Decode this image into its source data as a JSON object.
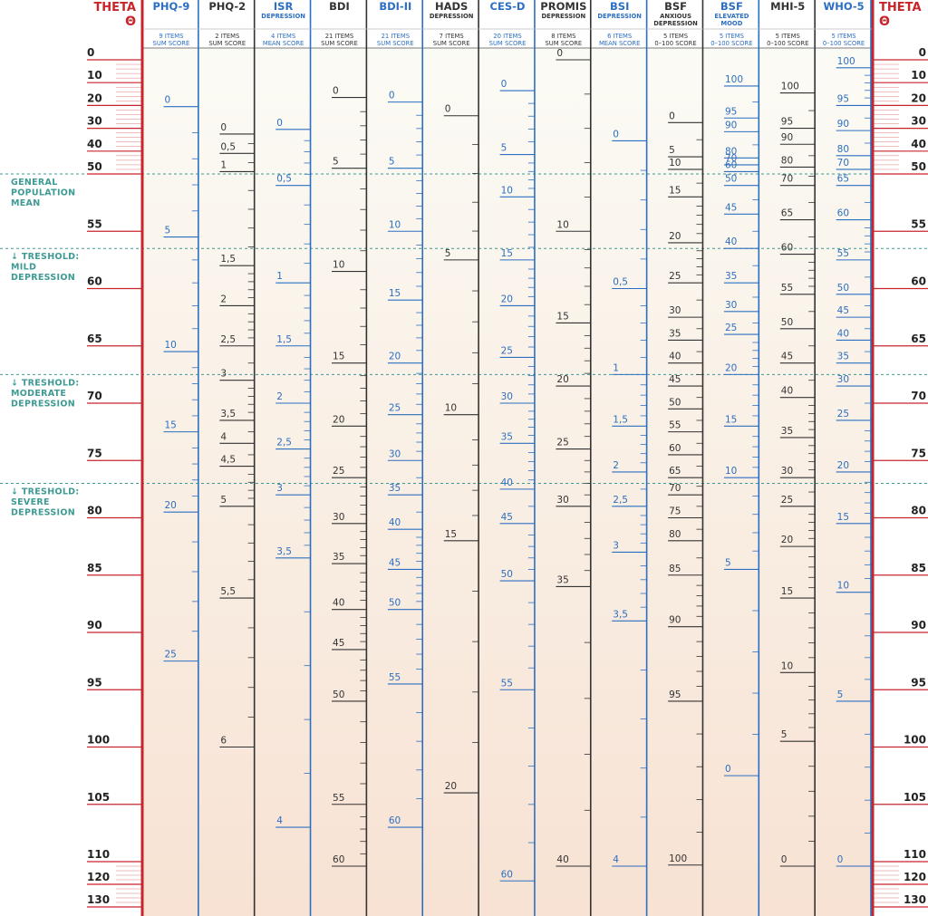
{
  "theta_header": {
    "title": "THETA",
    "symbol": "Θ"
  },
  "colors": {
    "theta_red": "#c8252b",
    "blue": "#2c6fc2",
    "dark": "#333333",
    "teal": "#3e9a93",
    "band_fill_start": "#fbfbf5",
    "band_fill_end": "#f7e2d3"
  },
  "theta_labels": [
    {
      "value": "0",
      "theta": 0
    },
    {
      "value": "10",
      "theta": 10
    },
    {
      "value": "20",
      "theta": 20
    },
    {
      "value": "30",
      "theta": 30
    },
    {
      "value": "40",
      "theta": 40
    },
    {
      "value": "50",
      "theta": 50
    },
    {
      "value": "55",
      "theta": 55
    },
    {
      "value": "60",
      "theta": 60
    },
    {
      "value": "65",
      "theta": 65
    },
    {
      "value": "70",
      "theta": 70
    },
    {
      "value": "75",
      "theta": 75
    },
    {
      "value": "80",
      "theta": 80
    },
    {
      "value": "85",
      "theta": 85
    },
    {
      "value": "90",
      "theta": 90
    },
    {
      "value": "95",
      "theta": 95
    },
    {
      "value": "100",
      "theta": 100
    },
    {
      "value": "105",
      "theta": 105
    },
    {
      "value": "110",
      "theta": 110
    },
    {
      "value": "120",
      "theta": 120
    },
    {
      "value": "130",
      "theta": 130
    }
  ],
  "thresholds": [
    {
      "theta": 50,
      "label": "GENERAL POPULATION MEAN",
      "lines": [
        "GENERAL",
        "POPULATION",
        "MEAN"
      ]
    },
    {
      "theta": 56.5,
      "label": "TRESHOLD: MILD DEPRESSION",
      "lines": [
        "↓ TRESHOLD:",
        "MILD",
        "DEPRESSION"
      ]
    },
    {
      "theta": 67.5,
      "label": "TRESHOLD: MODERATE DEPRESSION",
      "lines": [
        "↓ TRESHOLD:",
        "MODERATE",
        "DEPRESSION"
      ]
    },
    {
      "theta": 77,
      "label": "TRESHOLD: SEVERE DEPRESSION",
      "lines": [
        "↓ TRESHOLD:",
        "SEVERE",
        "DEPRESSION"
      ]
    }
  ],
  "instruments": [
    {
      "name": "PHQ-9",
      "sub": "",
      "items": "9 ITEMS",
      "score": "SUM SCORE",
      "color": "blue",
      "labels": [
        [
          "0",
          20.5
        ],
        [
          "5",
          55.5
        ],
        [
          "10",
          65.5
        ],
        [
          "15",
          72.5
        ],
        [
          "20",
          79.5
        ],
        [
          "25",
          92.5
        ]
      ]
    },
    {
      "name": "PHQ-2",
      "sub": "",
      "items": "2 ITEMS",
      "score": "SUM SCORE",
      "color": "dark",
      "labels": [
        [
          "0",
          32.5
        ],
        [
          "0,5",
          41
        ],
        [
          "1",
          49
        ],
        [
          "1,5",
          58
        ],
        [
          "2",
          61.5
        ],
        [
          "2,5",
          65
        ],
        [
          "3",
          68
        ],
        [
          "3,5",
          71.5
        ],
        [
          "4",
          73.5
        ],
        [
          "4,5",
          75.5
        ],
        [
          "5",
          79
        ],
        [
          "5,5",
          87
        ],
        [
          "6",
          100
        ]
      ]
    },
    {
      "name": "ISR",
      "sub": "DEPRESSION",
      "items": "4 ITEMS",
      "score": "MEAN SCORE",
      "color": "blue",
      "labels": [
        [
          "0",
          30.5
        ],
        [
          "0,5",
          51
        ],
        [
          "1",
          59.5
        ],
        [
          "1,5",
          65
        ],
        [
          "2",
          70
        ],
        [
          "2,5",
          74
        ],
        [
          "3",
          78
        ],
        [
          "3,5",
          83.5
        ],
        [
          "4",
          107
        ]
      ]
    },
    {
      "name": "BDI",
      "sub": "",
      "items": "21 ITEMS",
      "score": "SUM SCORE",
      "color": "dark",
      "labels": [
        [
          "0",
          16.5
        ],
        [
          "5",
          47.5
        ],
        [
          "10",
          58.5
        ],
        [
          "15",
          66.5
        ],
        [
          "20",
          72
        ],
        [
          "25",
          76.5
        ],
        [
          "30",
          80.5
        ],
        [
          "35",
          84
        ],
        [
          "40",
          88
        ],
        [
          "45",
          91.5
        ],
        [
          "50",
          96
        ],
        [
          "55",
          105
        ],
        [
          "60",
          112
        ]
      ]
    },
    {
      "name": "BDI-II",
      "sub": "",
      "items": "21 ITEMS",
      "score": "SUM SCORE",
      "color": "blue",
      "labels": [
        [
          "0",
          18.5
        ],
        [
          "5",
          47.5
        ],
        [
          "10",
          55
        ],
        [
          "15",
          61
        ],
        [
          "20",
          66.5
        ],
        [
          "25",
          71
        ],
        [
          "30",
          75
        ],
        [
          "35",
          78
        ],
        [
          "40",
          81
        ],
        [
          "45",
          84.5
        ],
        [
          "50",
          88
        ],
        [
          "55",
          94.5
        ],
        [
          "60",
          107
        ]
      ]
    },
    {
      "name": "HADS",
      "sub": "DEPRESSION",
      "items": "7 ITEMS",
      "score": "SUM SCORE",
      "color": "dark",
      "labels": [
        [
          "0",
          24.5
        ],
        [
          "5",
          57.5
        ],
        [
          "10",
          71
        ],
        [
          "15",
          82
        ],
        [
          "20",
          104
        ]
      ]
    },
    {
      "name": "CES-D",
      "sub": "",
      "items": "20 ITEMS",
      "score": "SUM SCORE",
      "color": "blue",
      "labels": [
        [
          "0",
          13.5
        ],
        [
          "5",
          41.5
        ],
        [
          "10",
          52
        ],
        [
          "15",
          57.5
        ],
        [
          "20",
          61.5
        ],
        [
          "25",
          66
        ],
        [
          "30",
          70
        ],
        [
          "35",
          73.5
        ],
        [
          "40",
          77.5
        ],
        [
          "45",
          80.5
        ],
        [
          "50",
          85.5
        ],
        [
          "55",
          95
        ],
        [
          "60",
          118.5
        ]
      ]
    },
    {
      "name": "PROMIS",
      "sub": "DEPRESSION",
      "items": "8 ITEMS",
      "score": "SUM SCORE",
      "color": "dark",
      "labels": [
        [
          "0",
          0
        ],
        [
          "10",
          55
        ],
        [
          "15",
          63
        ],
        [
          "20",
          68.5
        ],
        [
          "25",
          74
        ],
        [
          "30",
          79
        ],
        [
          "35",
          86
        ],
        [
          "40",
          112
        ]
      ]
    },
    {
      "name": "BSI",
      "sub": "DEPRESSION",
      "items": "6 ITEMS",
      "score": "MEAN SCORE",
      "color": "blue",
      "labels": [
        [
          "0",
          35.5
        ],
        [
          "0,5",
          60
        ],
        [
          "1",
          67.5
        ],
        [
          "1,5",
          72
        ],
        [
          "2",
          76
        ],
        [
          "2,5",
          79
        ],
        [
          "3",
          83
        ],
        [
          "3,5",
          89
        ],
        [
          "4",
          112
        ]
      ]
    },
    {
      "name": "BSF",
      "sub": "ANXIOUS DEPRESSION",
      "items": "5 ITEMS",
      "score": "0–100 SCORE",
      "color": "dark",
      "labels": [
        [
          "0",
          27.5
        ],
        [
          "5",
          42.5
        ],
        [
          "10",
          48
        ],
        [
          "15",
          52
        ],
        [
          "20",
          56
        ],
        [
          "25",
          59.5
        ],
        [
          "30",
          62.5
        ],
        [
          "35",
          64.5
        ],
        [
          "40",
          66.5
        ],
        [
          "45",
          68.5
        ],
        [
          "50",
          70.5
        ],
        [
          "55",
          72.5
        ],
        [
          "60",
          74.5
        ],
        [
          "65",
          76.5
        ],
        [
          "70",
          78
        ],
        [
          "75",
          80
        ],
        [
          "80",
          82
        ],
        [
          "85",
          85
        ],
        [
          "90",
          89.5
        ],
        [
          "95",
          96
        ],
        [
          "100",
          111.5
        ]
      ]
    },
    {
      "name": "BSF",
      "sub": "ELEVATED MOOD",
      "items": "5 ITEMS",
      "score": "0–100 SCORE",
      "color": "blue",
      "labels": [
        [
          "0",
          102.5
        ],
        [
          "5",
          84.5
        ],
        [
          "10",
          76.5
        ],
        [
          "15",
          72
        ],
        [
          "20",
          67.5
        ],
        [
          "25",
          64
        ],
        [
          "30",
          62
        ],
        [
          "35",
          59.5
        ],
        [
          "40",
          56.5
        ],
        [
          "45",
          53.5
        ],
        [
          "50",
          51
        ],
        [
          "60",
          49
        ],
        [
          "70",
          46
        ],
        [
          "80",
          43
        ],
        [
          "90",
          31.5
        ],
        [
          "95",
          25.5
        ],
        [
          "100",
          11.5
        ]
      ]
    },
    {
      "name": "MHI-5",
      "sub": "",
      "items": "5 ITEMS",
      "score": "0–100 SCORE",
      "color": "dark",
      "labels": [
        [
          "100",
          14.5
        ],
        [
          "95",
          30
        ],
        [
          "90",
          37
        ],
        [
          "80",
          47
        ],
        [
          "70",
          51
        ],
        [
          "65",
          54
        ],
        [
          "60",
          57
        ],
        [
          "55",
          60.5
        ],
        [
          "50",
          63.5
        ],
        [
          "45",
          66.5
        ],
        [
          "40",
          69.5
        ],
        [
          "35",
          73
        ],
        [
          "30",
          76.5
        ],
        [
          "25",
          79
        ],
        [
          "20",
          82.5
        ],
        [
          "15",
          87
        ],
        [
          "10",
          93.5
        ],
        [
          "5",
          99.5
        ],
        [
          "0",
          112
        ]
      ]
    },
    {
      "name": "WHO-5",
      "sub": "",
      "items": "5 ITEMS",
      "score": "0–100 SCORE",
      "color": "blue",
      "labels": [
        [
          "100",
          3.5
        ],
        [
          "95",
          20
        ],
        [
          "90",
          31
        ],
        [
          "80",
          42
        ],
        [
          "70",
          48
        ],
        [
          "65",
          51
        ],
        [
          "60",
          54
        ],
        [
          "55",
          57.5
        ],
        [
          "50",
          60.5
        ],
        [
          "45",
          62.5
        ],
        [
          "40",
          64.5
        ],
        [
          "35",
          66.5
        ],
        [
          "30",
          68.5
        ],
        [
          "25",
          71.5
        ],
        [
          "20",
          76
        ],
        [
          "15",
          80.5
        ],
        [
          "10",
          86.5
        ],
        [
          "5",
          96
        ],
        [
          "0",
          112
        ]
      ]
    }
  ]
}
